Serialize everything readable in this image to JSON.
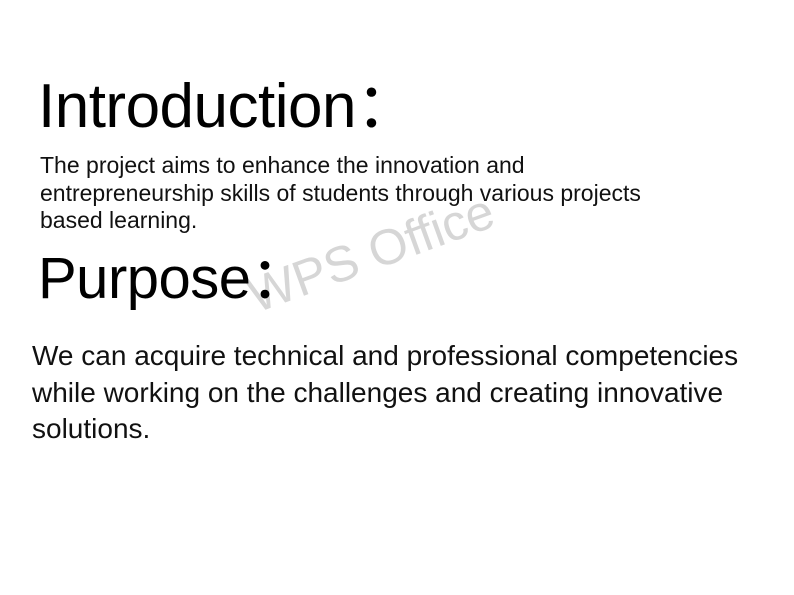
{
  "slide": {
    "introduction": {
      "heading": "Introduction：",
      "text": "The project aims to enhance the innovation and entrepreneurship skills of students through various projects based learning."
    },
    "purpose": {
      "heading": "Purpose：",
      "text": "We can acquire technical and professional competencies while working on the challenges and creating innovative solutions."
    },
    "watermark": "WPS Office"
  }
}
